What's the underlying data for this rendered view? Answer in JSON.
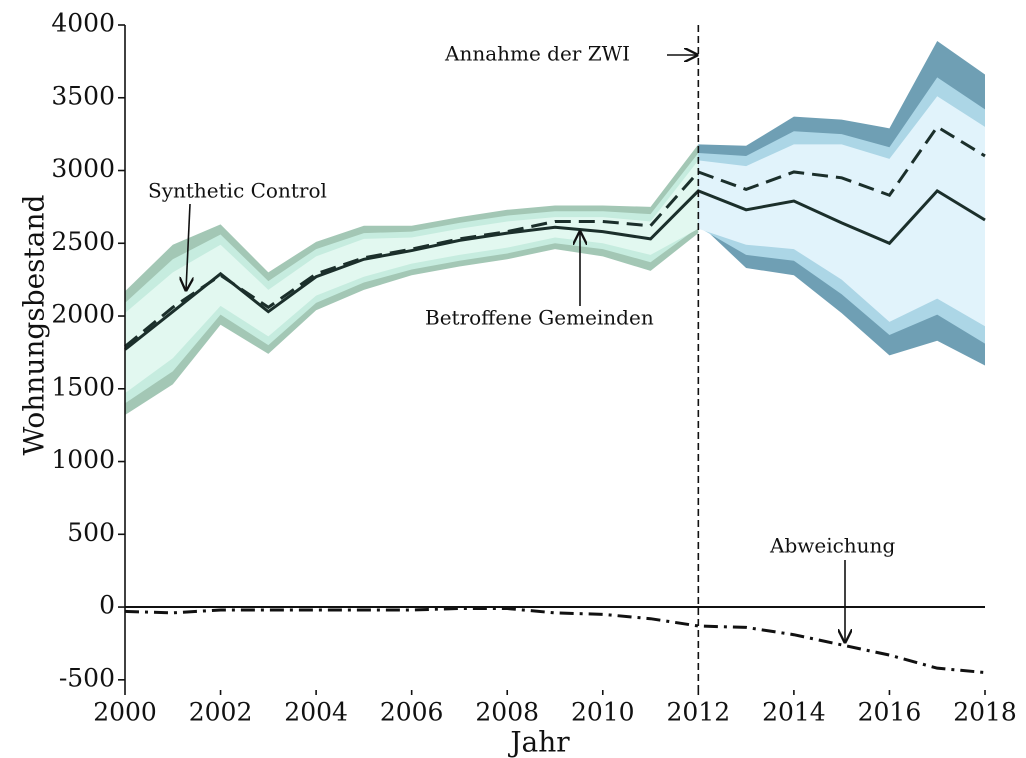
{
  "chart_data": {
    "type": "line",
    "x_label": "Jahr",
    "y_label": "Wohnungsbestand",
    "x": [
      2000,
      2001,
      2002,
      2003,
      2004,
      2005,
      2006,
      2007,
      2008,
      2009,
      2010,
      2011,
      2012,
      2013,
      2014,
      2015,
      2016,
      2017,
      2018
    ],
    "xlim": [
      2000,
      2018
    ],
    "xticks": [
      2000,
      2002,
      2004,
      2006,
      2008,
      2010,
      2012,
      2014,
      2016,
      2018
    ],
    "ylim": [
      -570,
      4000
    ],
    "yticks": [
      -500,
      0,
      500,
      1000,
      1500,
      2000,
      2500,
      3000,
      3500,
      4000
    ],
    "vline": 2012,
    "hline": 0,
    "series": [
      {
        "name": "Betroffene Gemeinden",
        "color": "#1b2f2b",
        "dash": "solid",
        "values": [
          1770,
          2030,
          2290,
          2030,
          2270,
          2390,
          2450,
          2520,
          2570,
          2610,
          2580,
          2530,
          2860,
          2730,
          2790,
          2640,
          2500,
          2860,
          2660
        ]
      },
      {
        "name": "Synthetic Control",
        "color": "#1b2f2b",
        "dash": "dashed",
        "values": [
          1790,
          2060,
          2280,
          2060,
          2290,
          2400,
          2460,
          2530,
          2580,
          2650,
          2650,
          2620,
          2990,
          2870,
          2990,
          2950,
          2830,
          3300,
          3100
        ]
      },
      {
        "name": "Abweichung",
        "color": "#111111",
        "dash": "dashdot",
        "values": [
          -30,
          -40,
          -20,
          -20,
          -20,
          -20,
          -20,
          -10,
          -10,
          -40,
          -50,
          -80,
          -130,
          -140,
          -190,
          -260,
          -330,
          -420,
          -450
        ]
      }
    ],
    "annotations": [
      {
        "text": "Annahme der ZWI"
      }
    ],
    "bands": [
      {
        "color": "#a3c7b5",
        "x": [
          2000,
          2001,
          2002,
          2003,
          2004,
          2005,
          2006,
          2007,
          2008,
          2009,
          2010,
          2011,
          2012
        ],
        "upper": [
          2170,
          2490,
          2630,
          2300,
          2510,
          2620,
          2620,
          2680,
          2730,
          2760,
          2760,
          2750,
          3180
        ],
        "lower": [
          1320,
          1530,
          1940,
          1740,
          2040,
          2180,
          2280,
          2340,
          2390,
          2460,
          2410,
          2310,
          2570
        ]
      },
      {
        "color": "#c6ecdf",
        "x": [
          2000,
          2001,
          2002,
          2003,
          2004,
          2005,
          2006,
          2007,
          2008,
          2009,
          2010,
          2011,
          2012
        ],
        "upper": [
          2090,
          2390,
          2560,
          2240,
          2460,
          2570,
          2580,
          2640,
          2690,
          2720,
          2720,
          2700,
          3120
        ],
        "lower": [
          1400,
          1620,
          2010,
          1800,
          2090,
          2230,
          2320,
          2380,
          2430,
          2500,
          2460,
          2370,
          2610
        ]
      },
      {
        "color": "#e2f8f0",
        "x": [
          2000,
          2001,
          2002,
          2003,
          2004,
          2005,
          2006,
          2007,
          2008,
          2009,
          2010,
          2011,
          2012
        ],
        "upper": [
          2020,
          2300,
          2490,
          2180,
          2410,
          2530,
          2540,
          2600,
          2650,
          2680,
          2680,
          2650,
          3070
        ],
        "lower": [
          1470,
          1710,
          2070,
          1860,
          2140,
          2270,
          2360,
          2420,
          2470,
          2540,
          2500,
          2420,
          2600
        ]
      },
      {
        "color": "#6f9fb4",
        "x": [
          2012,
          2013,
          2014,
          2015,
          2016,
          2017,
          2018
        ],
        "upper": [
          3180,
          3170,
          3370,
          3350,
          3290,
          3890,
          3660
        ],
        "lower": [
          2640,
          2330,
          2280,
          2020,
          1730,
          1830,
          1660
        ]
      },
      {
        "color": "#acd6e6",
        "x": [
          2012,
          2013,
          2014,
          2015,
          2016,
          2017,
          2018
        ],
        "upper": [
          3120,
          3100,
          3270,
          3250,
          3160,
          3640,
          3420
        ],
        "lower": [
          2610,
          2420,
          2380,
          2150,
          1870,
          2010,
          1810
        ]
      },
      {
        "color": "#e1f3fb",
        "x": [
          2012,
          2013,
          2014,
          2015,
          2016,
          2017,
          2018
        ],
        "upper": [
          3070,
          3030,
          3180,
          3180,
          3080,
          3510,
          3300
        ],
        "lower": [
          2600,
          2490,
          2460,
          2250,
          1960,
          2120,
          1930
        ]
      }
    ]
  }
}
